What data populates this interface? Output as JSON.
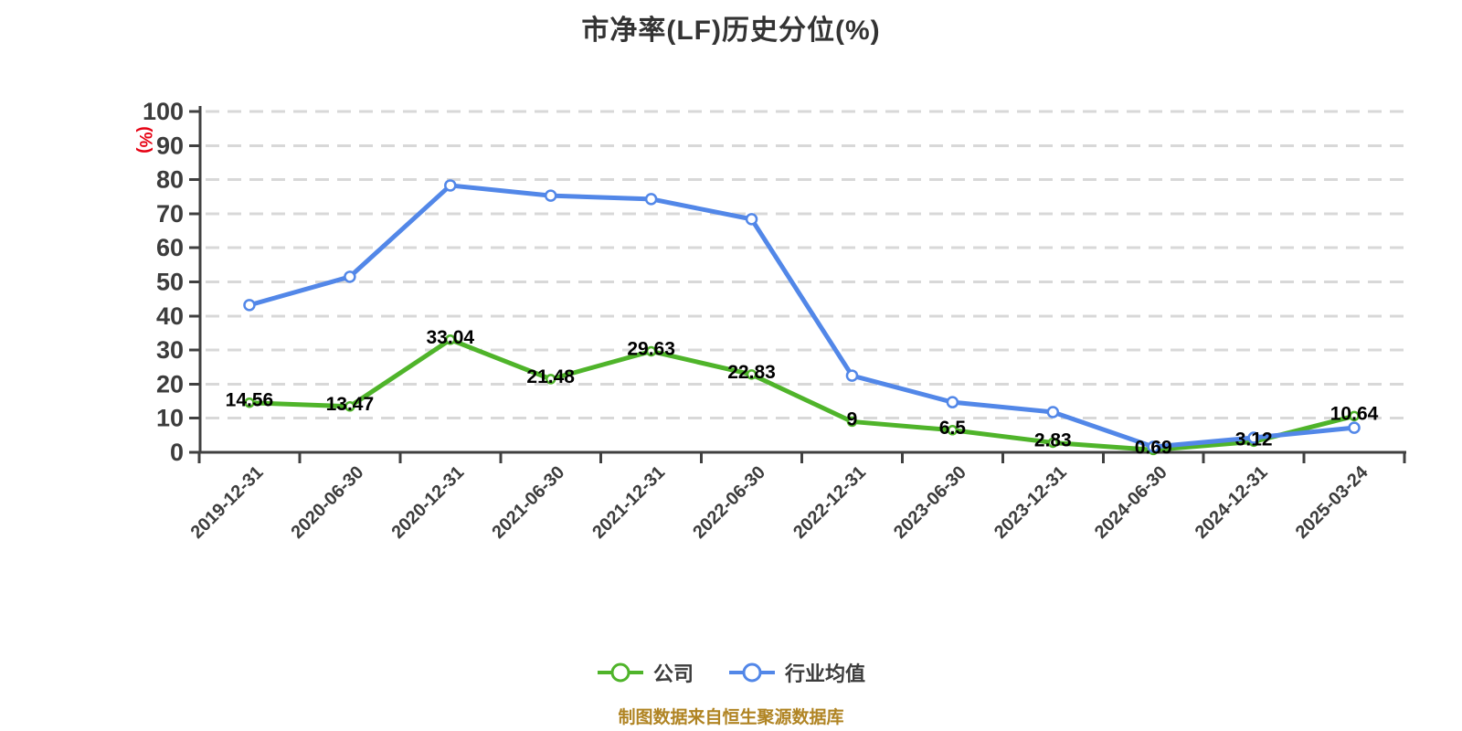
{
  "chart_data": {
    "type": "line",
    "title": "市净率(LF)历史分位(%)",
    "xlabel": "",
    "ylabel": "(%)",
    "ylim": [
      0,
      100
    ],
    "y_tick_interval": 10,
    "y_tick_labels": [
      "0",
      "10",
      "20",
      "30",
      "40",
      "50",
      "60",
      "70",
      "80",
      "90",
      "100"
    ],
    "grid": "horizontal-dashed",
    "legend_position": "bottom",
    "categories": [
      "2019-12-31",
      "2020-06-30",
      "2020-12-31",
      "2021-06-30",
      "2021-12-31",
      "2022-06-30",
      "2022-12-31",
      "2023-06-30",
      "2023-12-31",
      "2024-06-30",
      "2024-12-31",
      "2025-03-24"
    ],
    "series": [
      {
        "name": "公司",
        "color": "#4FB42A",
        "values": [
          14.56,
          13.47,
          33.04,
          21.48,
          29.63,
          22.83,
          9,
          6.5,
          2.83,
          0.69,
          3.12,
          10.64
        ],
        "point_labels": [
          "14.56",
          "13.47",
          "33.04",
          "21.48",
          "29.63",
          "22.83",
          "9",
          "6.5",
          "2.83",
          "0.69",
          "3.12",
          "10.64"
        ],
        "labels_shown": true,
        "marker": "circle-white-fill",
        "marker_radius": 4.5
      },
      {
        "name": "行业均值",
        "color": "#5287E8",
        "values": [
          43.2,
          51.5,
          78.3,
          75.3,
          74.3,
          68.4,
          22.5,
          14.7,
          11.8,
          1.6,
          4.3,
          7.2
        ],
        "point_labels": [],
        "labels_shown": false,
        "marker": "circle-white-fill",
        "marker_radius": 5.5
      }
    ]
  },
  "notes": {
    "source": "制图数据来自恒生聚源数据库"
  },
  "colors": {
    "company_green": "#4FB42A",
    "industry_blue": "#5287E8",
    "gridline": "#D8D8D8",
    "axis_line": "#404040",
    "title_text": "#333333",
    "axis_text": "#3C3C3C",
    "data_label": "#000000",
    "unit_label_red": "#E60012",
    "source_note_gold": "#B08423"
  }
}
